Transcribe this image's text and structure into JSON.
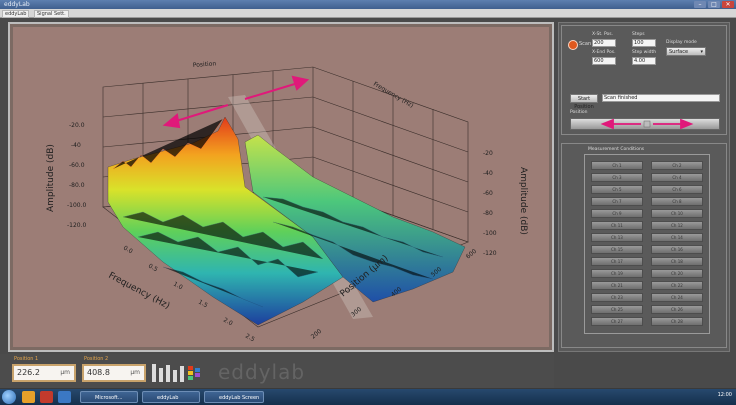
{
  "window": {
    "title": "eddyLab",
    "minimize": "–",
    "maximize": "□",
    "close": "✕"
  },
  "tabs": [
    "eddyLab",
    "Signal Sett."
  ],
  "plot": {
    "y_axis_label": "Amplitude (dB)",
    "y_axis_label_right": "Amplitude (dB)",
    "x_axis_label": "Frequency (Hz)",
    "depth_axis_label": "Position (µm)",
    "top_axis_label": "Position",
    "top_axis_label_right": "Frequency (Hz)",
    "z_ticks": [
      "-20.0",
      "-40",
      "-60.0",
      "-80.0",
      "-100.0",
      "-120.0"
    ],
    "z_ticks_right": [
      "-20",
      "-40",
      "-60",
      "-80",
      "-100",
      "-120"
    ],
    "x_ticks": [
      "0.0",
      "0.5",
      "1.0",
      "1.5",
      "2.0",
      "2.5"
    ],
    "depth_ticks": [
      "200",
      "300",
      "400",
      "500",
      "600"
    ]
  },
  "controls": {
    "mode_radio": "Scan",
    "field1_label": "X-St. Pos.",
    "field1_value": "200",
    "field2_label": "Steps",
    "field2_value": "100",
    "field3_label": "X-End Pos.",
    "field3_value": "600",
    "field4_label": "Step width",
    "field4_value": "4.00",
    "dropdown_label": "Display mode",
    "dropdown_value": "Surface",
    "start_button": "Start Position",
    "status_text": "Scan finished",
    "slider_label": "Position"
  },
  "grid_group": {
    "label": "Measurement Conditions",
    "buttons": [
      "Ch 1",
      "Ch 2",
      "Ch 3",
      "Ch 4",
      "Ch 5",
      "Ch 6",
      "Ch 7",
      "Ch 8",
      "Ch 9",
      "Ch 10",
      "Ch 11",
      "Ch 12",
      "Ch 13",
      "Ch 14",
      "Ch 15",
      "Ch 16",
      "Ch 17",
      "Ch 18",
      "Ch 19",
      "Ch 20",
      "Ch 21",
      "Ch 22",
      "Ch 23",
      "Ch 24",
      "Ch 25",
      "Ch 26",
      "Ch 27",
      "Ch 28"
    ]
  },
  "readouts": {
    "pos1_label": "Position 1",
    "pos1_value": "226.2",
    "pos1_unit": "µm",
    "pos2_label": "Position 2",
    "pos2_value": "408.8",
    "pos2_unit": "µm"
  },
  "logo": "eddylab",
  "taskbar": {
    "windows": [
      "Microsoft...",
      "eddyLab",
      "eddyLab Screen"
    ],
    "time": "12:00"
  },
  "colors": {
    "accent_orange": "#e0591e",
    "plot_bg": "#9c7d76",
    "arrow": "#e0197a"
  }
}
